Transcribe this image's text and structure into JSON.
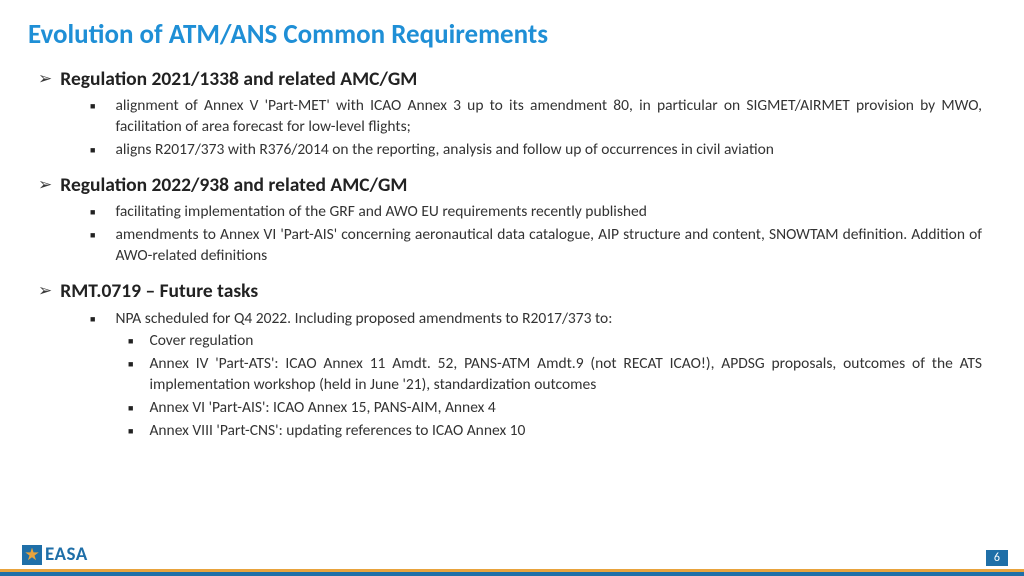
{
  "title": "Evolution of ATM/ANS Common Requirements",
  "sections": [
    {
      "heading": "Regulation 2021/1338 and related AMC/GM",
      "bullets": [
        {
          "text": "alignment of Annex V 'Part-MET' with ICAO Annex 3 up to its amendment 80, in particular on SIGMET/AIRMET provision by MWO, facilitation of area forecast for low-level flights;",
          "justify": true
        },
        {
          "text": "aligns R2017/373 with R376/2014 on the reporting, analysis and follow up of occurrences in civil aviation",
          "justify": false
        }
      ]
    },
    {
      "heading": "Regulation 2022/938 and related AMC/GM",
      "bullets": [
        {
          "text": "facilitating implementation of the GRF and AWO EU requirements recently published",
          "justify": false
        },
        {
          "text": "amendments to Annex VI 'Part-AIS' concerning aeronautical data catalogue, AIP structure and content, SNOWTAM definition. Addition of AWO-related definitions",
          "justify": true
        }
      ]
    },
    {
      "heading": "RMT.0719 – Future tasks",
      "bullets": [
        {
          "text": "NPA scheduled for Q4 2022. Including proposed amendments to R2017/373 to:",
          "justify": false,
          "sub": [
            "Cover regulation",
            "Annex IV 'Part-ATS': ICAO Annex 11 Amdt. 52, PANS-ATM Amdt.9 (not RECAT ICAO!), APDSG proposals, outcomes of the ATS implementation workshop (held in June '21), standardization outcomes",
            "Annex VI 'Part-AIS': ICAO Annex 15, PANS-AIM, Annex 4",
            "Annex VIII 'Part-CNS': updating references to ICAO Annex 10"
          ]
        }
      ]
    }
  ],
  "logo_text": "EASA",
  "page_number": "6",
  "colors": {
    "title": "#1f8fd6",
    "text": "#333333",
    "footer_orange": "#e8a33d",
    "footer_blue": "#1f6fa8"
  }
}
